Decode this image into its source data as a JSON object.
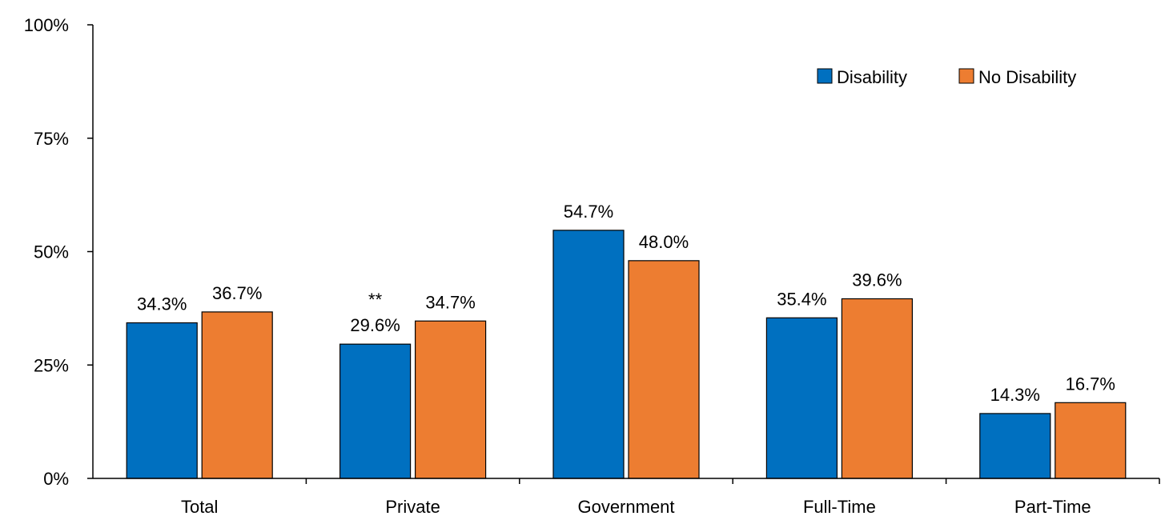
{
  "chart_data": {
    "type": "bar",
    "title": "",
    "xlabel": "",
    "ylabel": "",
    "categories": [
      "Total",
      "Private",
      "Government",
      "Full-Time",
      "Part-Time"
    ],
    "series": [
      {
        "name": "Disability",
        "color": "#0070C0",
        "values": [
          34.3,
          29.6,
          54.7,
          35.4,
          14.3
        ],
        "labels": [
          "34.3%",
          "29.6%",
          "54.7%",
          "35.4%",
          "14.3%"
        ]
      },
      {
        "name": "No Disability",
        "color": "#ED7D31",
        "values": [
          36.7,
          34.7,
          48.0,
          39.6,
          16.7
        ],
        "labels": [
          "36.7%",
          "34.7%",
          "48.0%",
          "39.6%",
          "16.7%"
        ]
      }
    ],
    "annotations": [
      {
        "text": "**",
        "category": "Private",
        "series": "Disability"
      }
    ],
    "ylim": [
      0,
      100
    ],
    "yticks": [
      0,
      25,
      50,
      75,
      100
    ],
    "ytick_labels": [
      "0%",
      "25%",
      "50%",
      "75%",
      "100%"
    ],
    "grid": false,
    "legend_position": "top-right"
  }
}
